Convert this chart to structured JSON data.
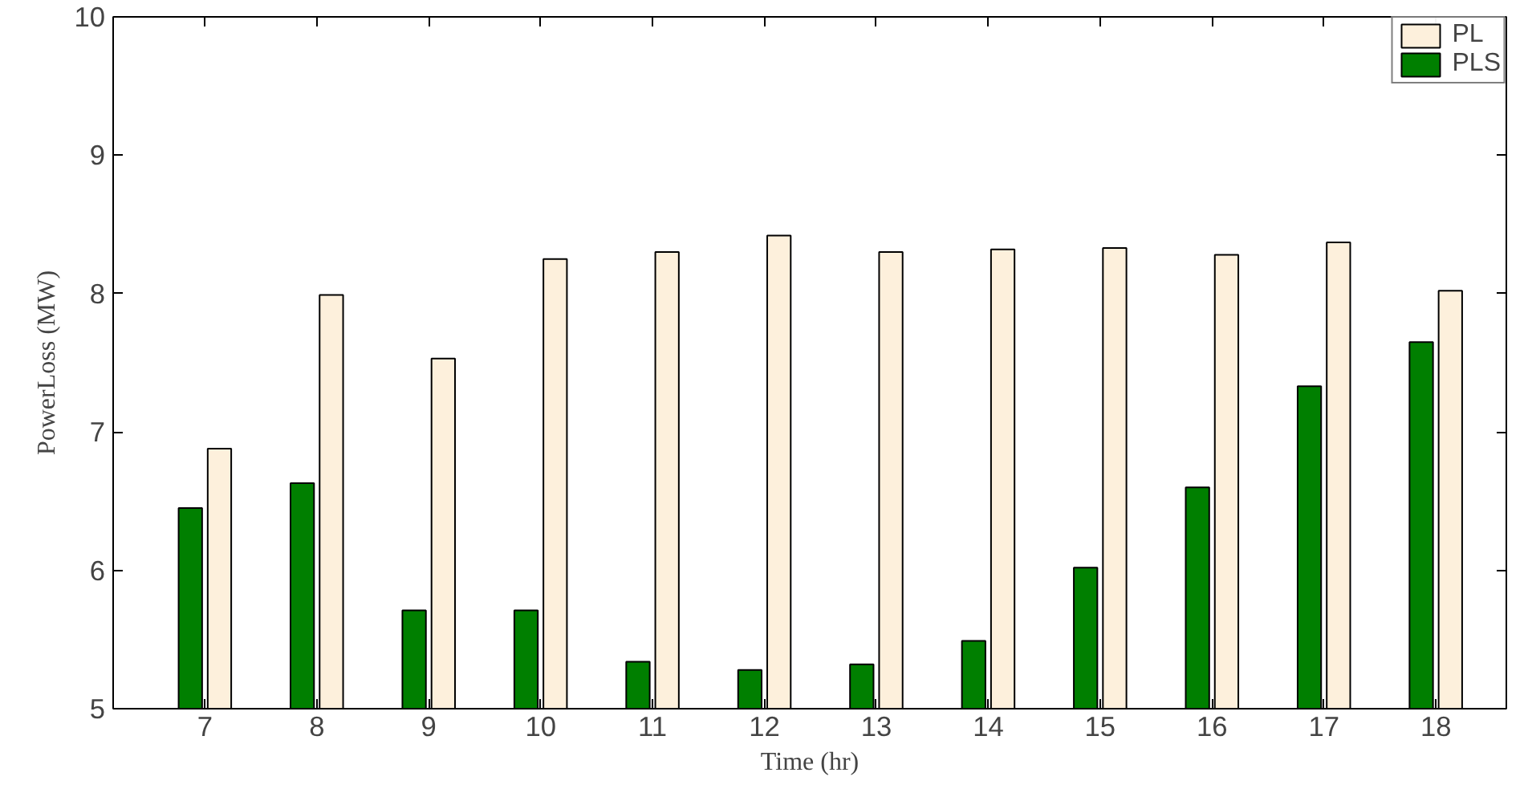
{
  "chart_data": {
    "type": "bar",
    "xlabel": "Time (hr)",
    "ylabel": "PowerLoss (MW)",
    "categories": [
      "7",
      "8",
      "9",
      "10",
      "11",
      "12",
      "13",
      "14",
      "15",
      "16",
      "17",
      "18"
    ],
    "series": [
      {
        "name": "PL",
        "color": "#fdf0dc",
        "values": [
          6.88,
          7.99,
          7.53,
          8.25,
          8.3,
          8.42,
          8.3,
          8.32,
          8.33,
          8.28,
          8.37,
          8.02
        ]
      },
      {
        "name": "PLS",
        "color": "#007f00",
        "values": [
          6.45,
          6.63,
          5.71,
          5.71,
          5.34,
          5.28,
          5.32,
          5.49,
          6.02,
          6.6,
          7.33,
          7.65
        ]
      }
    ],
    "ylim": [
      5,
      10
    ],
    "yticks": [
      5,
      6,
      7,
      8,
      9,
      10
    ],
    "grid": false,
    "legend": "top right"
  }
}
